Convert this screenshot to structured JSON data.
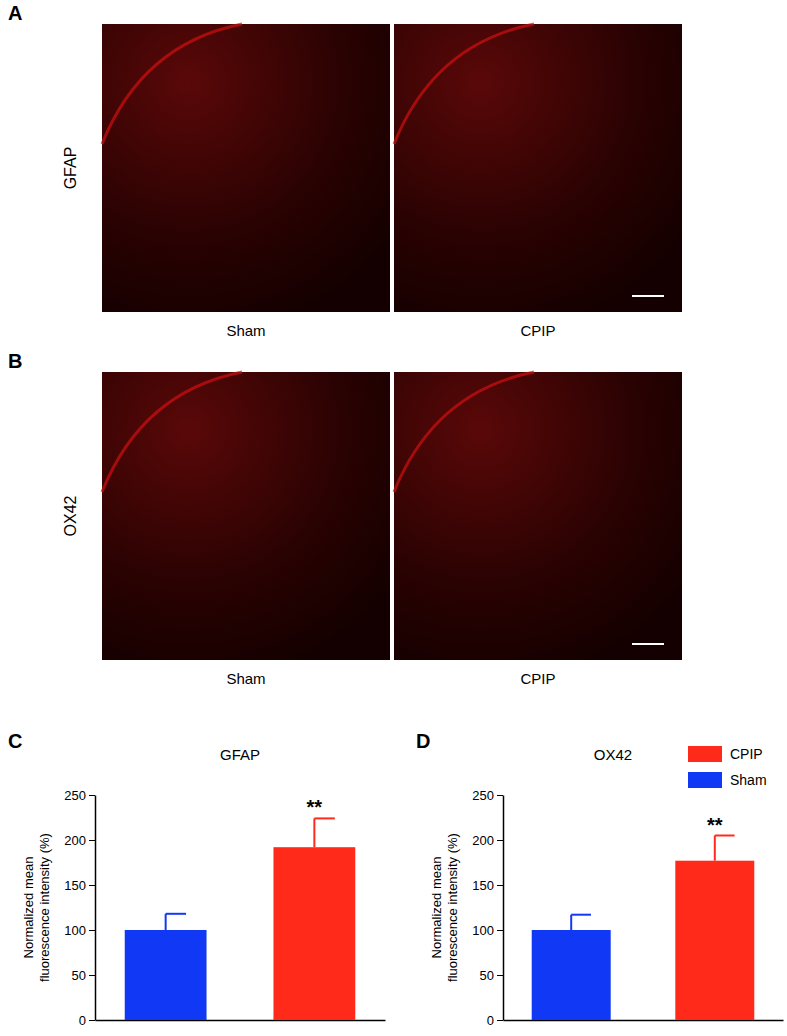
{
  "figure": {
    "panels": [
      {
        "label": "A",
        "stain": "GFAP",
        "images": [
          "Sham",
          "CPIP"
        ]
      },
      {
        "label": "B",
        "stain": "OX42",
        "images": [
          "Sham",
          "CPIP"
        ]
      }
    ]
  },
  "chart_data": [
    {
      "type": "bar",
      "panel": "C",
      "title": "GFAP",
      "y_label": "Normalized mean fluorescence intensity (%)",
      "categories": [
        null,
        null
      ],
      "series": [
        {
          "name": "CPIP",
          "color": "#ff2a1a",
          "values": [
            null,
            192
          ],
          "errors": [
            null,
            32
          ],
          "annotation": "**"
        },
        {
          "name": "Sham",
          "color": "#1138f5",
          "values": [
            100,
            null
          ],
          "errors": [
            18,
            null
          ]
        }
      ],
      "stacked": true,
      "ylim": [
        0,
        250
      ],
      "yticks": [
        0,
        50,
        100,
        150,
        200,
        250
      ],
      "legend": false
    },
    {
      "type": "bar",
      "panel": "D",
      "title": "OX42",
      "y_label": "Normalized mean fluorescence intensity (%)",
      "categories": [
        null,
        null
      ],
      "series": [
        {
          "name": "CPIP",
          "color": "#ff2a1a",
          "values": [
            null,
            177
          ],
          "errors": [
            null,
            28
          ],
          "annotation": "**"
        },
        {
          "name": "Sham",
          "color": "#1138f5",
          "values": [
            100,
            null
          ],
          "errors": [
            17,
            null
          ]
        }
      ],
      "stacked": true,
      "ylim": [
        0,
        250
      ],
      "yticks": [
        0,
        50,
        100,
        150,
        200,
        250
      ],
      "legend": "top-right"
    }
  ]
}
